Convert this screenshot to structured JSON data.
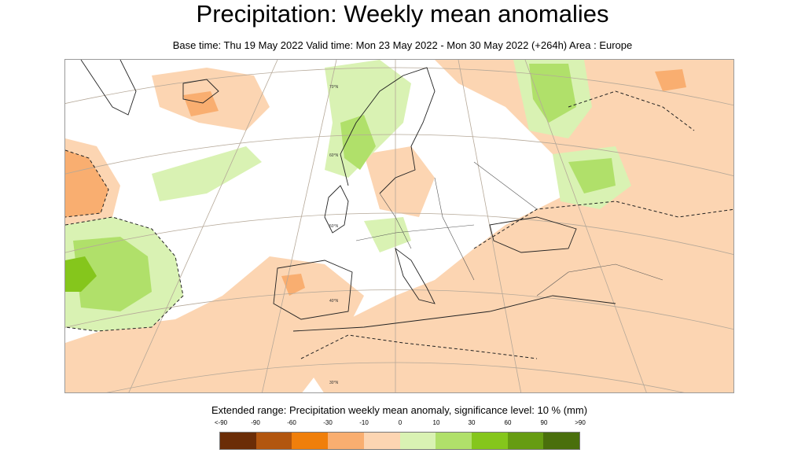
{
  "title": "Precipitation: Weekly mean anomalies",
  "subtitle": "Base time: Thu 19 May 2022 Valid time: Mon 23 May 2022 - Mon 30 May 2022 (+264h) Area : Europe",
  "map": {
    "region": "Europe",
    "lat_labels": [
      "70°N",
      "60°N",
      "50°N",
      "40°N",
      "30°N"
    ]
  },
  "legend": {
    "title": "Extended range: Precipitation weekly mean anomaly, significance level: 10 % (mm)",
    "ticks": [
      "<-90",
      "-90",
      "-60",
      "-30",
      "-10",
      "0",
      "10",
      "30",
      "60",
      "90",
      ">90"
    ],
    "colors": [
      "#6b2d07",
      "#b2560f",
      "#f07f0b",
      "#f9ae70",
      "#fcd5b2",
      "#ffffff",
      "#d9f2b3",
      "#b0e06a",
      "#85c61c",
      "#669c12",
      "#4a6f0c"
    ]
  }
}
